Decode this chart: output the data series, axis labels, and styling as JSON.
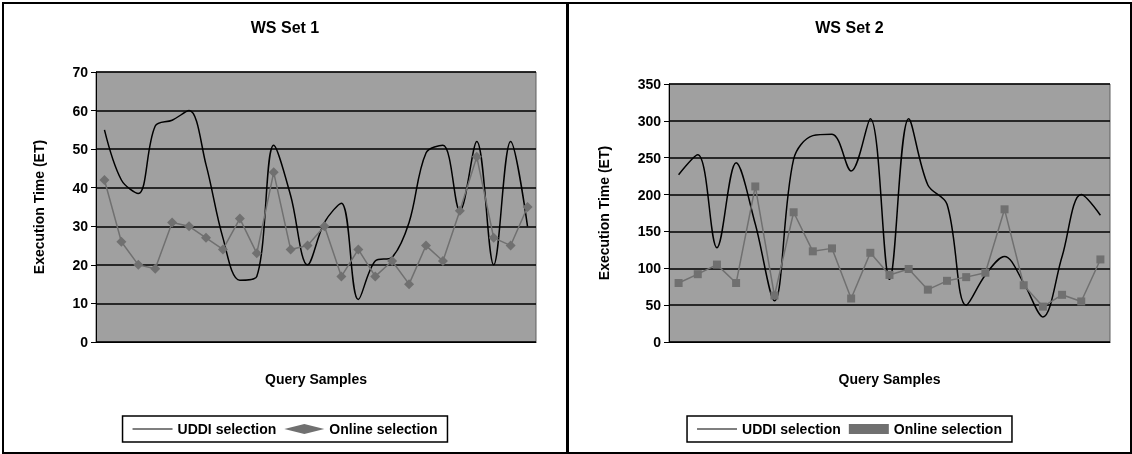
{
  "chart_data": [
    {
      "type": "line",
      "title": "WS Set 1",
      "xlabel": "Query Samples",
      "ylabel": "Execution Time (ET)",
      "categories": [
        null,
        null,
        null,
        null,
        null,
        null,
        null,
        null,
        null,
        null,
        null,
        null,
        null,
        null,
        null,
        null,
        null,
        null,
        null,
        null,
        null,
        null,
        null,
        null,
        null,
        null
      ],
      "series": [
        {
          "name": "UDDI selection",
          "color": "#000000",
          "marker": "none",
          "values": [
            55,
            42,
            38.5,
            56,
            57.5,
            60,
            46,
            27,
            16,
            17,
            51,
            38,
            20,
            31,
            36,
            11,
            21,
            22,
            31,
            49,
            51,
            34,
            52,
            20,
            52,
            30
          ]
        },
        {
          "name": "Online selection",
          "color": "#707070",
          "marker": "diamond",
          "values": [
            42,
            26,
            20,
            19,
            31,
            30,
            27,
            24,
            32,
            23,
            44,
            24,
            25,
            30,
            17,
            24,
            17,
            21,
            15,
            25,
            21,
            34,
            48,
            27,
            25,
            35
          ]
        }
      ],
      "ylim": [
        0,
        70
      ],
      "yticks": [
        0,
        10,
        20,
        30,
        40,
        50,
        60,
        70
      ],
      "grid": "y",
      "legend": "bottom"
    },
    {
      "type": "line",
      "title": "WS Set 2",
      "xlabel": "Query Samples",
      "ylabel": "Execution Time (ET)",
      "categories": [
        null,
        null,
        null,
        null,
        null,
        null,
        null,
        null,
        null,
        null,
        null,
        null,
        null,
        null,
        null,
        null,
        null,
        null,
        null,
        null,
        null,
        null,
        null
      ],
      "series": [
        {
          "name": "UDDI selection",
          "color": "#000000",
          "marker": "none",
          "values": [
            227,
            254,
            128,
            243,
            160,
            56,
            248,
            280,
            282,
            232,
            303,
            85,
            303,
            213,
            187,
            50,
            91,
            116,
            80,
            34,
            116,
            200,
            172
          ]
        },
        {
          "name": "Online selection",
          "color": "#707070",
          "marker": "square",
          "values": [
            80,
            92,
            105,
            80,
            211,
            63,
            176,
            123,
            127,
            59,
            121,
            91,
            99,
            71,
            83,
            88,
            94,
            180,
            77,
            48,
            64,
            55,
            112
          ]
        }
      ],
      "ylim": [
        0,
        350
      ],
      "yticks": [
        0,
        50,
        100,
        150,
        200,
        250,
        300,
        350
      ],
      "grid": "y",
      "legend": "bottom"
    }
  ]
}
